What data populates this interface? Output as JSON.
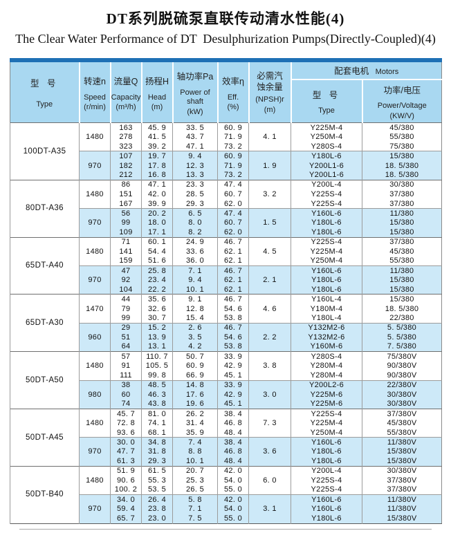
{
  "page": {
    "title_zh": "DT系列脱硫泵直联传动清水性能(4)",
    "title_en": "The Clear Water Performance of DT  Desulphurization Pumps(Directly-Coupled)(4)"
  },
  "colors": {
    "top_bar": "#1e70b5",
    "header_bg": "#a9d8f1",
    "alt_row_bg": "#cde9f8",
    "grid_line": "#9b9b9b"
  },
  "table": {
    "header": {
      "model": {
        "zh": "型 号",
        "en": "Type"
      },
      "speed": {
        "zh": "转速n",
        "en": "Speed",
        "unit": "(r/min)"
      },
      "capacity": {
        "zh": "流量Q",
        "en": "Capacity",
        "unit": "(m³/h)"
      },
      "head": {
        "zh": "扬程H",
        "en": "Head",
        "unit": "(m)"
      },
      "power": {
        "zh": "轴功率Pa",
        "en": "Power of shaft",
        "unit": "(kW)"
      },
      "eff": {
        "zh": "效率η",
        "en": "Eff.",
        "unit": "(%)"
      },
      "npsh": {
        "zh": "必需汽蚀余量",
        "sub": "(NPSH)r",
        "unit": "(m)"
      },
      "motors": {
        "zh": "配套电机",
        "en": "Motors"
      },
      "motor_type": {
        "zh": "型 号",
        "en": "Type"
      },
      "motor_pv": {
        "zh": "功率/电压",
        "en": "Power/Voltage",
        "unit": "(KW/V)"
      }
    },
    "blocks": [
      {
        "model": "100DT-A35",
        "groups": [
          {
            "speed": "1480",
            "npsh": "4. 1",
            "rows": [
              {
                "capacity": "163",
                "head": "45. 9",
                "power": "33. 5",
                "eff": "60. 9",
                "motor_type": "Y225M-4",
                "motor_pv": "45/380"
              },
              {
                "capacity": "278",
                "head": "41. 5",
                "power": "43. 7",
                "eff": "71. 9",
                "motor_type": "Y250M-4",
                "motor_pv": "55/380"
              },
              {
                "capacity": "323",
                "head": "39. 2",
                "power": "47. 1",
                "eff": "73. 2",
                "motor_type": "Y280S-4",
                "motor_pv": "75/380"
              }
            ]
          },
          {
            "speed": "970",
            "npsh": "1. 9",
            "rows": [
              {
                "capacity": "107",
                "head": "19. 7",
                "power": "9. 4",
                "eff": "60. 9",
                "motor_type": "Y180L-6",
                "motor_pv": "15/380"
              },
              {
                "capacity": "182",
                "head": "17. 8",
                "power": "12. 3",
                "eff": "71. 9",
                "motor_type": "Y200L1-6",
                "motor_pv": "18. 5/380"
              },
              {
                "capacity": "212",
                "head": "16. 8",
                "power": "13. 3",
                "eff": "73. 2",
                "motor_type": "Y200L1-6",
                "motor_pv": "18. 5/380"
              }
            ]
          }
        ]
      },
      {
        "model": "80DT-A36",
        "groups": [
          {
            "speed": "1480",
            "npsh": "3. 2",
            "rows": [
              {
                "capacity": "86",
                "head": "47. 1",
                "power": "23. 3",
                "eff": "47. 4",
                "motor_type": "Y200L-4",
                "motor_pv": "30/380"
              },
              {
                "capacity": "151",
                "head": "42. 0",
                "power": "28. 5",
                "eff": "60. 7",
                "motor_type": "Y225S-4",
                "motor_pv": "37/380"
              },
              {
                "capacity": "167",
                "head": "39. 9",
                "power": "29. 3",
                "eff": "62. 0",
                "motor_type": "Y225S-4",
                "motor_pv": "37/380"
              }
            ]
          },
          {
            "speed": "970",
            "npsh": "1. 5",
            "rows": [
              {
                "capacity": "56",
                "head": "20. 2",
                "power": "6. 5",
                "eff": "47. 4",
                "motor_type": "Y160L-6",
                "motor_pv": "11/380"
              },
              {
                "capacity": "99",
                "head": "18. 0",
                "power": "8. 0",
                "eff": "60. 7",
                "motor_type": "Y180L-6",
                "motor_pv": "15/380"
              },
              {
                "capacity": "109",
                "head": "17. 1",
                "power": "8. 2",
                "eff": "62. 0",
                "motor_type": "Y180L-6",
                "motor_pv": "15/380"
              }
            ]
          }
        ]
      },
      {
        "model": "65DT-A40",
        "groups": [
          {
            "speed": "1480",
            "npsh": "4. 5",
            "rows": [
              {
                "capacity": "71",
                "head": "60. 1",
                "power": "24. 9",
                "eff": "46. 7",
                "motor_type": "Y225S-4",
                "motor_pv": "37/380"
              },
              {
                "capacity": "141",
                "head": "54. 4",
                "power": "33. 6",
                "eff": "62. 1",
                "motor_type": "Y225M-4",
                "motor_pv": "45/380"
              },
              {
                "capacity": "159",
                "head": "51. 6",
                "power": "36. 0",
                "eff": "62. 1",
                "motor_type": "Y250M-4",
                "motor_pv": "55/380"
              }
            ]
          },
          {
            "speed": "970",
            "npsh": "2. 1",
            "rows": [
              {
                "capacity": "47",
                "head": "25. 8",
                "power": "7. 1",
                "eff": "46. 7",
                "motor_type": "Y160L-6",
                "motor_pv": "11/380"
              },
              {
                "capacity": "92",
                "head": "23. 4",
                "power": "9. 4",
                "eff": "62. 1",
                "motor_type": "Y180L-6",
                "motor_pv": "15/380"
              },
              {
                "capacity": "104",
                "head": "22. 2",
                "power": "10. 1",
                "eff": "62. 1",
                "motor_type": "Y180L-6",
                "motor_pv": "15/380"
              }
            ]
          }
        ]
      },
      {
        "model": "65DT-A30",
        "groups": [
          {
            "speed": "1470",
            "npsh": "4. 6",
            "rows": [
              {
                "capacity": "44",
                "head": "35. 6",
                "power": "9. 1",
                "eff": "46. 7",
                "motor_type": "Y160L-4",
                "motor_pv": "15/380"
              },
              {
                "capacity": "79",
                "head": "32. 6",
                "power": "12. 8",
                "eff": "54. 6",
                "motor_type": "Y180M-4",
                "motor_pv": "18. 5/380"
              },
              {
                "capacity": "99",
                "head": "30. 7",
                "power": "15. 4",
                "eff": "53. 8",
                "motor_type": "Y180L-4",
                "motor_pv": "22/380"
              }
            ]
          },
          {
            "speed": "960",
            "npsh": "2. 2",
            "rows": [
              {
                "capacity": "29",
                "head": "15. 2",
                "power": "2. 6",
                "eff": "46. 7",
                "motor_type": "Y132M2-6",
                "motor_pv": "5. 5/380"
              },
              {
                "capacity": "51",
                "head": "13. 9",
                "power": "3. 5",
                "eff": "54. 6",
                "motor_type": "Y132M2-6",
                "motor_pv": "5. 5/380"
              },
              {
                "capacity": "64",
                "head": "13. 1",
                "power": "4. 2",
                "eff": "53. 8",
                "motor_type": "Y160M-6",
                "motor_pv": "7. 5/380"
              }
            ]
          }
        ]
      },
      {
        "model": "50DT-A50",
        "groups": [
          {
            "speed": "1480",
            "npsh": "3. 8",
            "rows": [
              {
                "capacity": "57",
                "head": "110. 7",
                "power": "50. 7",
                "eff": "33. 9",
                "motor_type": "Y280S-4",
                "motor_pv": "75/380V"
              },
              {
                "capacity": "91",
                "head": "105. 5",
                "power": "60. 9",
                "eff": "42. 9",
                "motor_type": "Y280M-4",
                "motor_pv": "90/380V"
              },
              {
                "capacity": "111",
                "head": "99. 8",
                "power": "66. 9",
                "eff": "45. 1",
                "motor_type": "Y280M-4",
                "motor_pv": "90/380V"
              }
            ]
          },
          {
            "speed": "980",
            "npsh": "3. 0",
            "rows": [
              {
                "capacity": "38",
                "head": "48. 5",
                "power": "14. 8",
                "eff": "33. 9",
                "motor_type": "Y200L2-6",
                "motor_pv": "22/380V"
              },
              {
                "capacity": "60",
                "head": "46. 3",
                "power": "17. 6",
                "eff": "42. 9",
                "motor_type": "Y225M-6",
                "motor_pv": "30/380V"
              },
              {
                "capacity": "74",
                "head": "43. 8",
                "power": "19. 6",
                "eff": "45. 1",
                "motor_type": "Y225M-6",
                "motor_pv": "30/380V"
              }
            ]
          }
        ]
      },
      {
        "model": "50DT-A45",
        "groups": [
          {
            "speed": "1480",
            "npsh": "7. 3",
            "rows": [
              {
                "capacity": "45. 7",
                "head": "81. 0",
                "power": "26. 2",
                "eff": "38. 4",
                "motor_type": "Y225S-4",
                "motor_pv": "37/380V"
              },
              {
                "capacity": "72. 8",
                "head": "74. 1",
                "power": "31. 4",
                "eff": "46. 8",
                "motor_type": "Y225M-4",
                "motor_pv": "45/380V"
              },
              {
                "capacity": "93. 6",
                "head": "68. 1",
                "power": "35. 9",
                "eff": "48. 4",
                "motor_type": "Y250M-4",
                "motor_pv": "55/380V"
              }
            ]
          },
          {
            "speed": "970",
            "npsh": "3. 6",
            "rows": [
              {
                "capacity": "30. 0",
                "head": "34. 8",
                "power": "7. 4",
                "eff": "38. 4",
                "motor_type": "Y160L-6",
                "motor_pv": "11/380V"
              },
              {
                "capacity": "47. 7",
                "head": "31. 8",
                "power": "8. 8",
                "eff": "46. 8",
                "motor_type": "Y180L-6",
                "motor_pv": "15/380V"
              },
              {
                "capacity": "61. 3",
                "head": "29. 3",
                "power": "10. 1",
                "eff": "48. 4",
                "motor_type": "Y180L-6",
                "motor_pv": "15/380V"
              }
            ]
          }
        ]
      },
      {
        "model": "50DT-B40",
        "groups": [
          {
            "speed": "1480",
            "npsh": "6. 0",
            "rows": [
              {
                "capacity": "51. 9",
                "head": "61. 5",
                "power": "20. 7",
                "eff": "42. 0",
                "motor_type": "Y200L-4",
                "motor_pv": "30/380V"
              },
              {
                "capacity": "90. 6",
                "head": "55. 3",
                "power": "25. 3",
                "eff": "54. 0",
                "motor_type": "Y225S-4",
                "motor_pv": "37/380V"
              },
              {
                "capacity": "100. 2",
                "head": "53. 5",
                "power": "26. 5",
                "eff": "55. 0",
                "motor_type": "Y225S-4",
                "motor_pv": "37/380V"
              }
            ]
          },
          {
            "speed": "970",
            "npsh": "3. 1",
            "rows": [
              {
                "capacity": "34. 0",
                "head": "26. 4",
                "power": "5. 8",
                "eff": "42. 0",
                "motor_type": "Y160L-6",
                "motor_pv": "11/380V"
              },
              {
                "capacity": "59. 4",
                "head": "23. 8",
                "power": "7. 1",
                "eff": "54. 0",
                "motor_type": "Y160L-6",
                "motor_pv": "11/380V"
              },
              {
                "capacity": "65. 7",
                "head": "23. 0",
                "power": "7. 5",
                "eff": "55. 0",
                "motor_type": "Y180L-6",
                "motor_pv": "15/380V"
              }
            ]
          }
        ]
      }
    ]
  }
}
